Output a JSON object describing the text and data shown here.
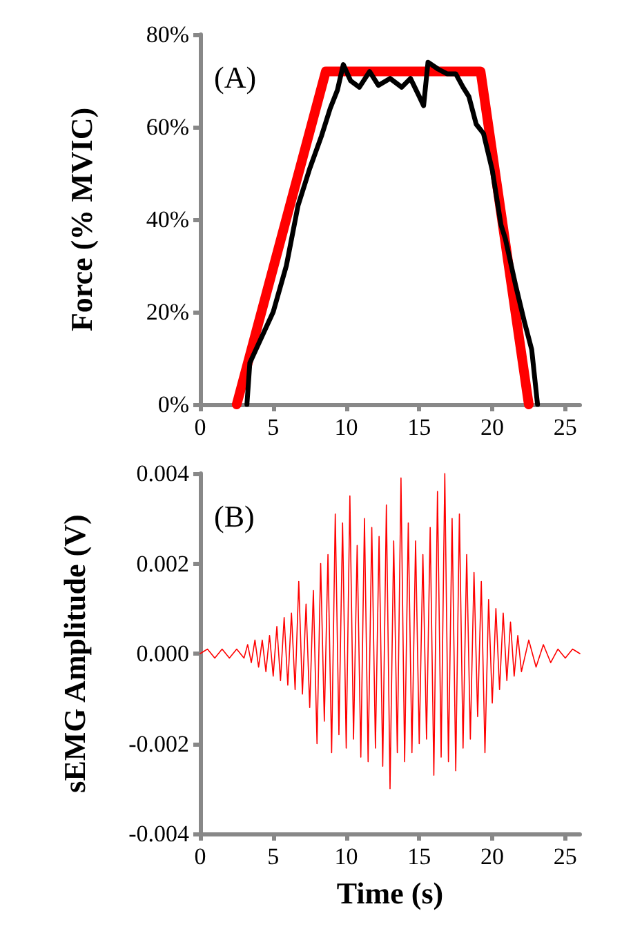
{
  "chart_data": [
    {
      "type": "line",
      "ylabel": "Force (% MVIC)",
      "annotations": [
        "(A)"
      ],
      "xlim": [
        0,
        26
      ],
      "xticks": [
        0,
        5,
        10,
        15,
        20,
        25
      ],
      "ylim": [
        0,
        80
      ],
      "yticks": [
        {
          "value": 0,
          "label": "0%"
        },
        {
          "value": 20,
          "label": "20%"
        },
        {
          "value": 40,
          "label": "40%"
        },
        {
          "value": 60,
          "label": "60%"
        },
        {
          "value": 80,
          "label": "80%"
        }
      ],
      "series": [
        {
          "color": "#ff0000",
          "x": [
            2.5,
            8.6,
            19.2,
            22.5
          ],
          "values": [
            0,
            72,
            72,
            0
          ]
        },
        {
          "color": "#000000",
          "x": [
            3.2,
            3.4,
            5.0,
            5.9,
            6.7,
            7.5,
            8.3,
            8.9,
            9.4,
            9.8,
            10.3,
            10.9,
            11.6,
            12.2,
            13.0,
            13.8,
            14.4,
            15.0,
            15.3,
            15.6,
            16.3,
            16.9,
            17.5,
            18.0,
            18.4,
            18.9,
            19.4,
            20.0,
            20.6,
            20.9,
            21.6,
            22.2,
            22.7,
            23.1
          ],
          "values": [
            0,
            9,
            20,
            30,
            43,
            51,
            58,
            64,
            68,
            73.5,
            70,
            68.6,
            72,
            69,
            70.5,
            68.6,
            70.5,
            66.6,
            64.6,
            74,
            72.5,
            71.5,
            71.5,
            68.6,
            66.6,
            60.6,
            58.6,
            50.7,
            38.8,
            35.8,
            25.8,
            17.9,
            11.9,
            0
          ]
        }
      ]
    },
    {
      "type": "line",
      "xlabel": "Time (s)",
      "ylabel": "sEMG Amplitude (V)",
      "annotations": [
        "(B)"
      ],
      "xlim": [
        0,
        26
      ],
      "xticks": [
        0,
        5,
        10,
        15,
        20,
        25
      ],
      "ylim": [
        -0.004,
        0.004
      ],
      "yticks": [
        {
          "value": -0.004,
          "label": "-0.004"
        },
        {
          "value": -0.002,
          "label": "-0.002"
        },
        {
          "value": 0,
          "label": "0.000"
        },
        {
          "value": 0.002,
          "label": "0.002"
        },
        {
          "value": 0.004,
          "label": "0.004"
        }
      ],
      "series": [
        {
          "color": "#ff0000",
          "x": [
            0,
            0.5,
            1,
            1.5,
            2,
            2.5,
            3,
            3.25,
            3.5,
            3.75,
            4,
            4.25,
            4.5,
            4.75,
            5,
            5.25,
            5.5,
            5.75,
            6,
            6.25,
            6.5,
            6.75,
            7,
            7.25,
            7.5,
            7.75,
            8,
            8.25,
            8.5,
            8.75,
            9,
            9.25,
            9.5,
            9.75,
            10,
            10.25,
            10.5,
            10.75,
            11,
            11.25,
            11.5,
            11.75,
            12,
            12.25,
            12.5,
            12.75,
            13,
            13.25,
            13.5,
            13.75,
            14,
            14.25,
            14.5,
            14.75,
            15,
            15.25,
            15.5,
            15.75,
            16,
            16.25,
            16.5,
            16.75,
            17,
            17.25,
            17.5,
            17.75,
            18,
            18.25,
            18.5,
            18.75,
            19,
            19.25,
            19.5,
            19.75,
            20,
            20.25,
            20.5,
            20.75,
            21,
            21.25,
            21.5,
            21.75,
            22,
            22.5,
            23,
            23.5,
            24,
            24.5,
            25,
            25.5,
            26
          ],
          "values": [
            0,
            0.0001,
            -0.0001,
            0.0001,
            -0.0001,
            0.0001,
            -0.0001,
            0.0002,
            -0.0002,
            0.0003,
            -0.0003,
            0.0003,
            -0.0004,
            0.0004,
            -0.0005,
            0.0006,
            -0.0006,
            0.0008,
            -0.0007,
            0.0009,
            -0.0008,
            0.0016,
            -0.0009,
            0.0011,
            -0.0012,
            0.0014,
            -0.002,
            0.002,
            -0.0015,
            0.0022,
            -0.0022,
            0.0031,
            -0.0018,
            0.0029,
            -0.0021,
            0.0035,
            -0.0019,
            0.0024,
            -0.0023,
            0.003,
            -0.0024,
            0.0028,
            -0.0021,
            0.0026,
            -0.0025,
            0.0033,
            -0.003,
            0.0025,
            -0.0022,
            0.0039,
            -0.0024,
            0.0029,
            -0.0022,
            0.0025,
            -0.002,
            0.0022,
            -0.0019,
            0.0028,
            -0.0027,
            0.0036,
            -0.0023,
            0.004,
            -0.0024,
            0.003,
            -0.0026,
            0.0031,
            -0.0021,
            0.0022,
            -0.0019,
            0.0018,
            -0.0014,
            0.0016,
            -0.0022,
            0.0012,
            -0.0011,
            0.001,
            -0.0008,
            0.0009,
            -0.0006,
            0.0007,
            -0.0005,
            0.0004,
            -0.0004,
            0.0003,
            -0.0003,
            0.0002,
            -0.0002,
            0.0001,
            -0.0001,
            0.0001,
            0
          ]
        }
      ]
    }
  ]
}
